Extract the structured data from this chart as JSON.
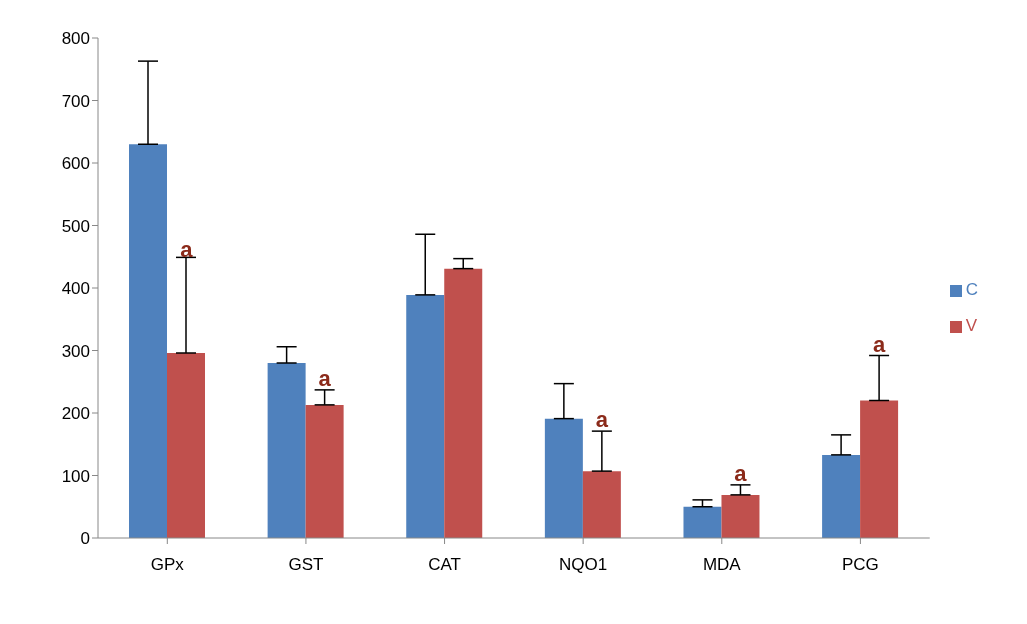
{
  "chart_data": {
    "type": "bar",
    "categories": [
      "GPx",
      "GST",
      "CAT",
      "NQO1",
      "MDA",
      "PCG"
    ],
    "series": [
      {
        "name": "C",
        "color": "#4f81bd",
        "values": [
          630,
          280,
          389,
          191,
          50,
          133
        ],
        "errors": [
          [
            630,
            763
          ],
          [
            280,
            306
          ],
          [
            389,
            486
          ],
          [
            191,
            247
          ],
          [
            50,
            61
          ],
          [
            133,
            165
          ]
        ]
      },
      {
        "name": "V",
        "color": "#c0504d",
        "values": [
          296,
          213,
          431,
          107,
          69,
          220
        ],
        "errors": [
          [
            296,
            449
          ],
          [
            213,
            237
          ],
          [
            431,
            447
          ],
          [
            107,
            171
          ],
          [
            69,
            85
          ],
          [
            220,
            292
          ]
        ],
        "value_labels": [
          null,
          "a",
          null,
          "a",
          "a",
          "a"
        ]
      }
    ],
    "ylim": [
      0,
      800
    ],
    "yticks": [
      0,
      100,
      200,
      300,
      400,
      500,
      600,
      700,
      800
    ],
    "grid": false,
    "legend": "right",
    "annotations": [
      {
        "text": "a",
        "x": "GPx",
        "y": 449
      }
    ]
  }
}
